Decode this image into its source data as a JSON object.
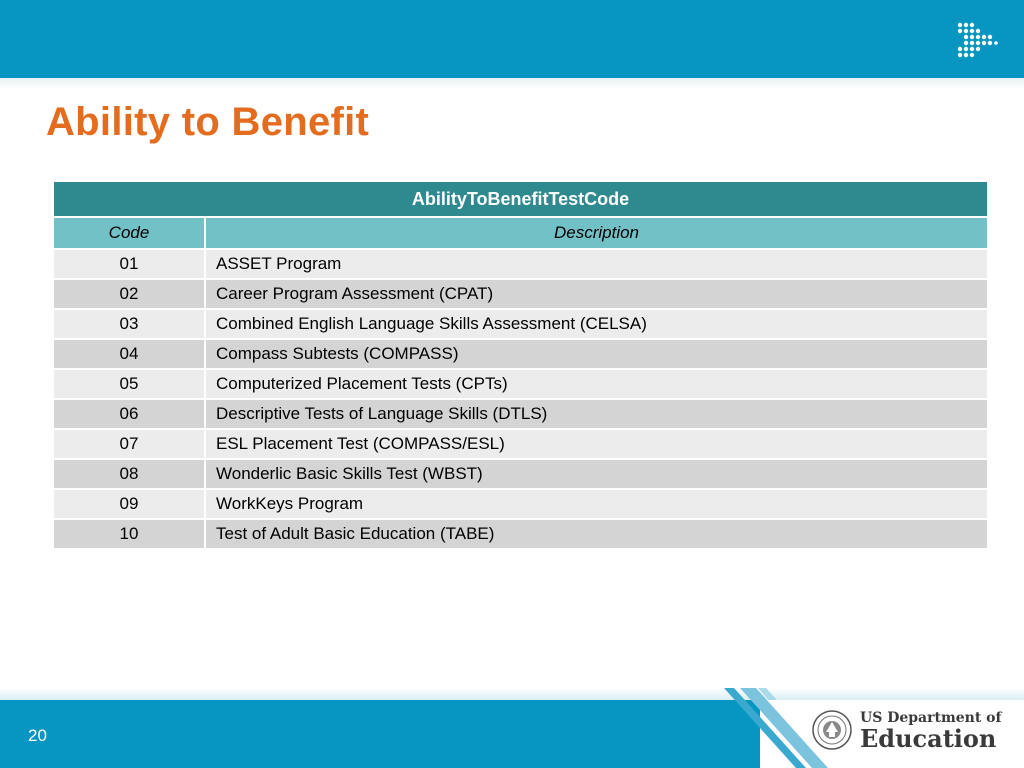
{
  "slide": {
    "title": "Ability to Benefit",
    "page_number": "20"
  },
  "table": {
    "caption": "AbilityToBenefitTestCode",
    "headers": [
      "Code",
      "Description"
    ],
    "rows": [
      {
        "code": "01",
        "description": "ASSET Program"
      },
      {
        "code": "02",
        "description": "Career Program Assessment (CPAT)"
      },
      {
        "code": "03",
        "description": "Combined English Language Skills Assessment (CELSA)"
      },
      {
        "code": "04",
        "description": "Compass Subtests (COMPASS)"
      },
      {
        "code": "05",
        "description": "Computerized Placement Tests (CPTs)"
      },
      {
        "code": "06",
        "description": "Descriptive Tests of Language Skills (DTLS)"
      },
      {
        "code": "07",
        "description": "ESL Placement Test (COMPASS/ESL)"
      },
      {
        "code": "08",
        "description": "Wonderlic Basic Skills Test (WBST)"
      },
      {
        "code": "09",
        "description": "WorkKeys Program"
      },
      {
        "code": "10",
        "description": "Test of Adult Basic Education (TABE)"
      }
    ]
  },
  "logo": {
    "line1": "US Department of",
    "line2": "Education",
    "icons": [
      "dot-grid-logo-icon",
      "department-seal-icon"
    ]
  },
  "colors": {
    "band": "#0795c1",
    "title": "#e46c1e",
    "caption_bg": "#2f8a90",
    "header_bg": "#72c1c6",
    "row_light": "#ececec",
    "row_dark": "#d4d4d4"
  }
}
